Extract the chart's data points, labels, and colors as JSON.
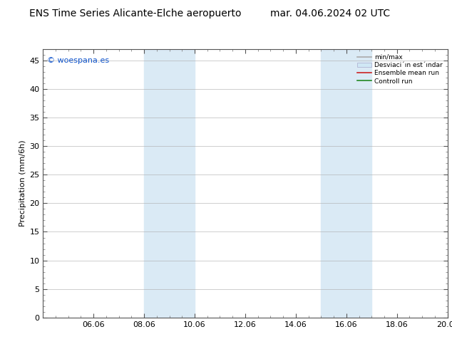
{
  "title_left": "ENS Time Series Alicante-Elche aeropuerto",
  "title_right": "mar. 04.06.2024 02 UTC",
  "ylabel": "Precipitation (mm/6h)",
  "watermark": "© woespana.es",
  "ylim": [
    0,
    47
  ],
  "yticks": [
    0,
    5,
    10,
    15,
    20,
    25,
    30,
    35,
    40,
    45
  ],
  "xlim": [
    0,
    16
  ],
  "xtick_labels": [
    "06.06",
    "08.06",
    "10.06",
    "12.06",
    "14.06",
    "16.06",
    "18.06",
    "20.06"
  ],
  "xtick_positions": [
    2,
    4,
    6,
    8,
    10,
    12,
    14,
    16
  ],
  "shaded_regions": [
    {
      "xmin": 4.0,
      "xmax": 6.0,
      "color": "#daeaf5"
    },
    {
      "xmin": 11.0,
      "xmax": 13.0,
      "color": "#daeaf5"
    }
  ],
  "bg_color": "#ffffff",
  "plot_bg_color": "#ffffff",
  "legend_labels": [
    "min/max",
    "Desviaci´ın est´ındar",
    "Ensemble mean run",
    "Controll run"
  ],
  "legend_colors": [
    "#aaaaaa",
    "#d0e8f5",
    "#cc2222",
    "#228822"
  ],
  "title_fontsize": 10,
  "axis_label_fontsize": 8,
  "tick_fontsize": 8,
  "watermark_color": "#1155cc"
}
